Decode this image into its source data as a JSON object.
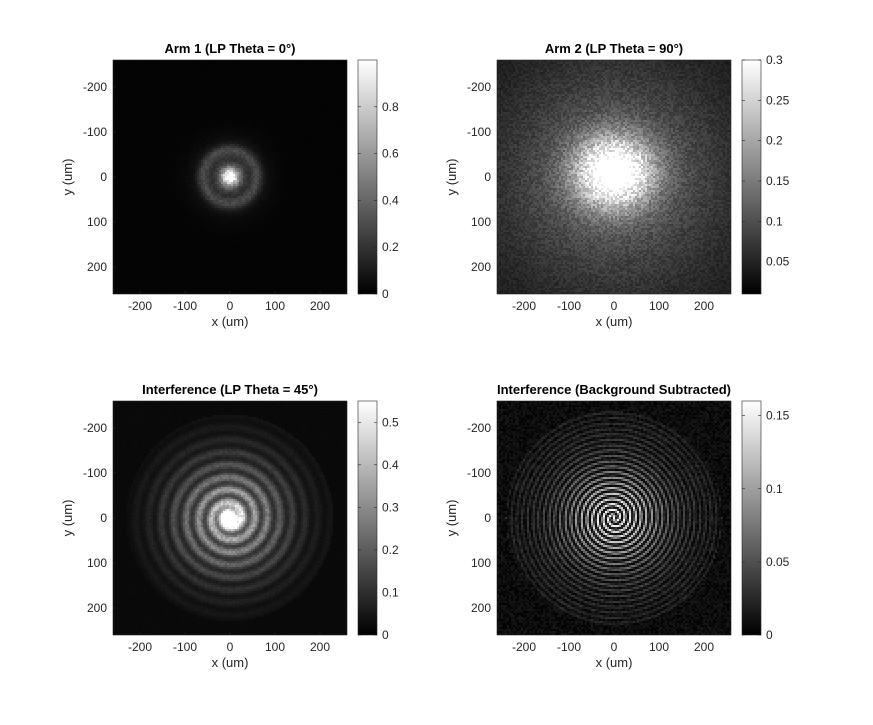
{
  "figure": {
    "background": "#ffffff"
  },
  "chart_data": [
    {
      "type": "heatmap",
      "title": "Arm 1 (LP Theta = 0°)",
      "xlabel": "x (um)",
      "ylabel": "y (um)",
      "xlim": [
        -260,
        260
      ],
      "ylim": [
        -260,
        260
      ],
      "y_reversed": true,
      "xticks": [
        -200,
        -100,
        0,
        100,
        200
      ],
      "yticks": [
        -200,
        -100,
        0,
        100,
        200
      ],
      "colormap": "gray",
      "clim": [
        0,
        1
      ],
      "cbar_ticks": [
        0,
        0.2,
        0.4,
        0.6,
        0.8
      ],
      "cbar_tick_labels": [
        "0",
        "0.2",
        "0.4",
        "0.6",
        "0.8"
      ],
      "image": {
        "pattern": "peak_ring",
        "peak": 0.95,
        "peak_sigma_um": 14,
        "halo_level": 0.22,
        "halo_sigma_um": 45,
        "rings": [
          {
            "r_um": 60,
            "w_um": 9,
            "amp": 0.18
          }
        ],
        "background": 0.015
      }
    },
    {
      "type": "heatmap",
      "title": "Arm 2 (LP Theta = 90°)",
      "xlabel": "x (um)",
      "ylabel": "y (um)",
      "xlim": [
        -260,
        260
      ],
      "ylim": [
        -260,
        260
      ],
      "y_reversed": true,
      "xticks": [
        -200,
        -100,
        0,
        100,
        200
      ],
      "yticks": [
        -200,
        -100,
        0,
        100,
        200
      ],
      "colormap": "gray",
      "clim": [
        0.01,
        0.3
      ],
      "cbar_ticks": [
        0.05,
        0.1,
        0.15,
        0.2,
        0.25,
        0.3
      ],
      "cbar_tick_labels": [
        "0.05",
        "0.1",
        "0.15",
        "0.2",
        "0.25",
        "0.3"
      ],
      "image": {
        "pattern": "broad_blob",
        "peak": 0.27,
        "center_um": [
          0,
          -10
        ],
        "sigma_um": [
          60,
          55
        ],
        "wide_level": 0.09,
        "wide_sigma_um": 190,
        "background": 0.03
      }
    },
    {
      "type": "heatmap",
      "title": "Interference (LP Theta = 45°)",
      "xlabel": "x (um)",
      "ylabel": "y (um)",
      "xlim": [
        -260,
        260
      ],
      "ylim": [
        -260,
        260
      ],
      "y_reversed": true,
      "xticks": [
        -200,
        -100,
        0,
        100,
        200
      ],
      "yticks": [
        -200,
        -100,
        0,
        100,
        200
      ],
      "colormap": "gray",
      "clim": [
        0,
        0.55
      ],
      "cbar_ticks": [
        0,
        0.1,
        0.2,
        0.3,
        0.4,
        0.5
      ],
      "cbar_tick_labels": [
        "0",
        "0.1",
        "0.2",
        "0.3",
        "0.4",
        "0.5"
      ],
      "image": {
        "pattern": "spiral",
        "peak": 0.5,
        "peak_sigma_um": 16,
        "envelope_level": 0.22,
        "envelope_sigma_um": 80,
        "fringe_period_um": 28,
        "fringe_contrast": 0.45,
        "max_radius_um": 230,
        "background": 0.02
      }
    },
    {
      "type": "heatmap",
      "title": "Interference (Background Subtracted)",
      "xlabel": "x (um)",
      "ylabel": "y (um)",
      "xlim": [
        -260,
        260
      ],
      "ylim": [
        -260,
        260
      ],
      "y_reversed": true,
      "xticks": [
        -200,
        -100,
        0,
        100,
        200
      ],
      "yticks": [
        -200,
        -100,
        0,
        100,
        200
      ],
      "colormap": "gray",
      "clim": [
        0,
        0.16
      ],
      "cbar_ticks": [
        0,
        0.05,
        0.1,
        0.15
      ],
      "cbar_tick_labels": [
        "0",
        "0.05",
        "0.1",
        "0.15"
      ],
      "image": {
        "pattern": "spiral_subtracted",
        "peak": 0.12,
        "envelope_sigma_um": 70,
        "outer_level": 0.035,
        "outer_sigma_um": 190,
        "fringe_period_um": 24,
        "max_radius_um": 240,
        "noise_level": 0.025
      }
    }
  ]
}
